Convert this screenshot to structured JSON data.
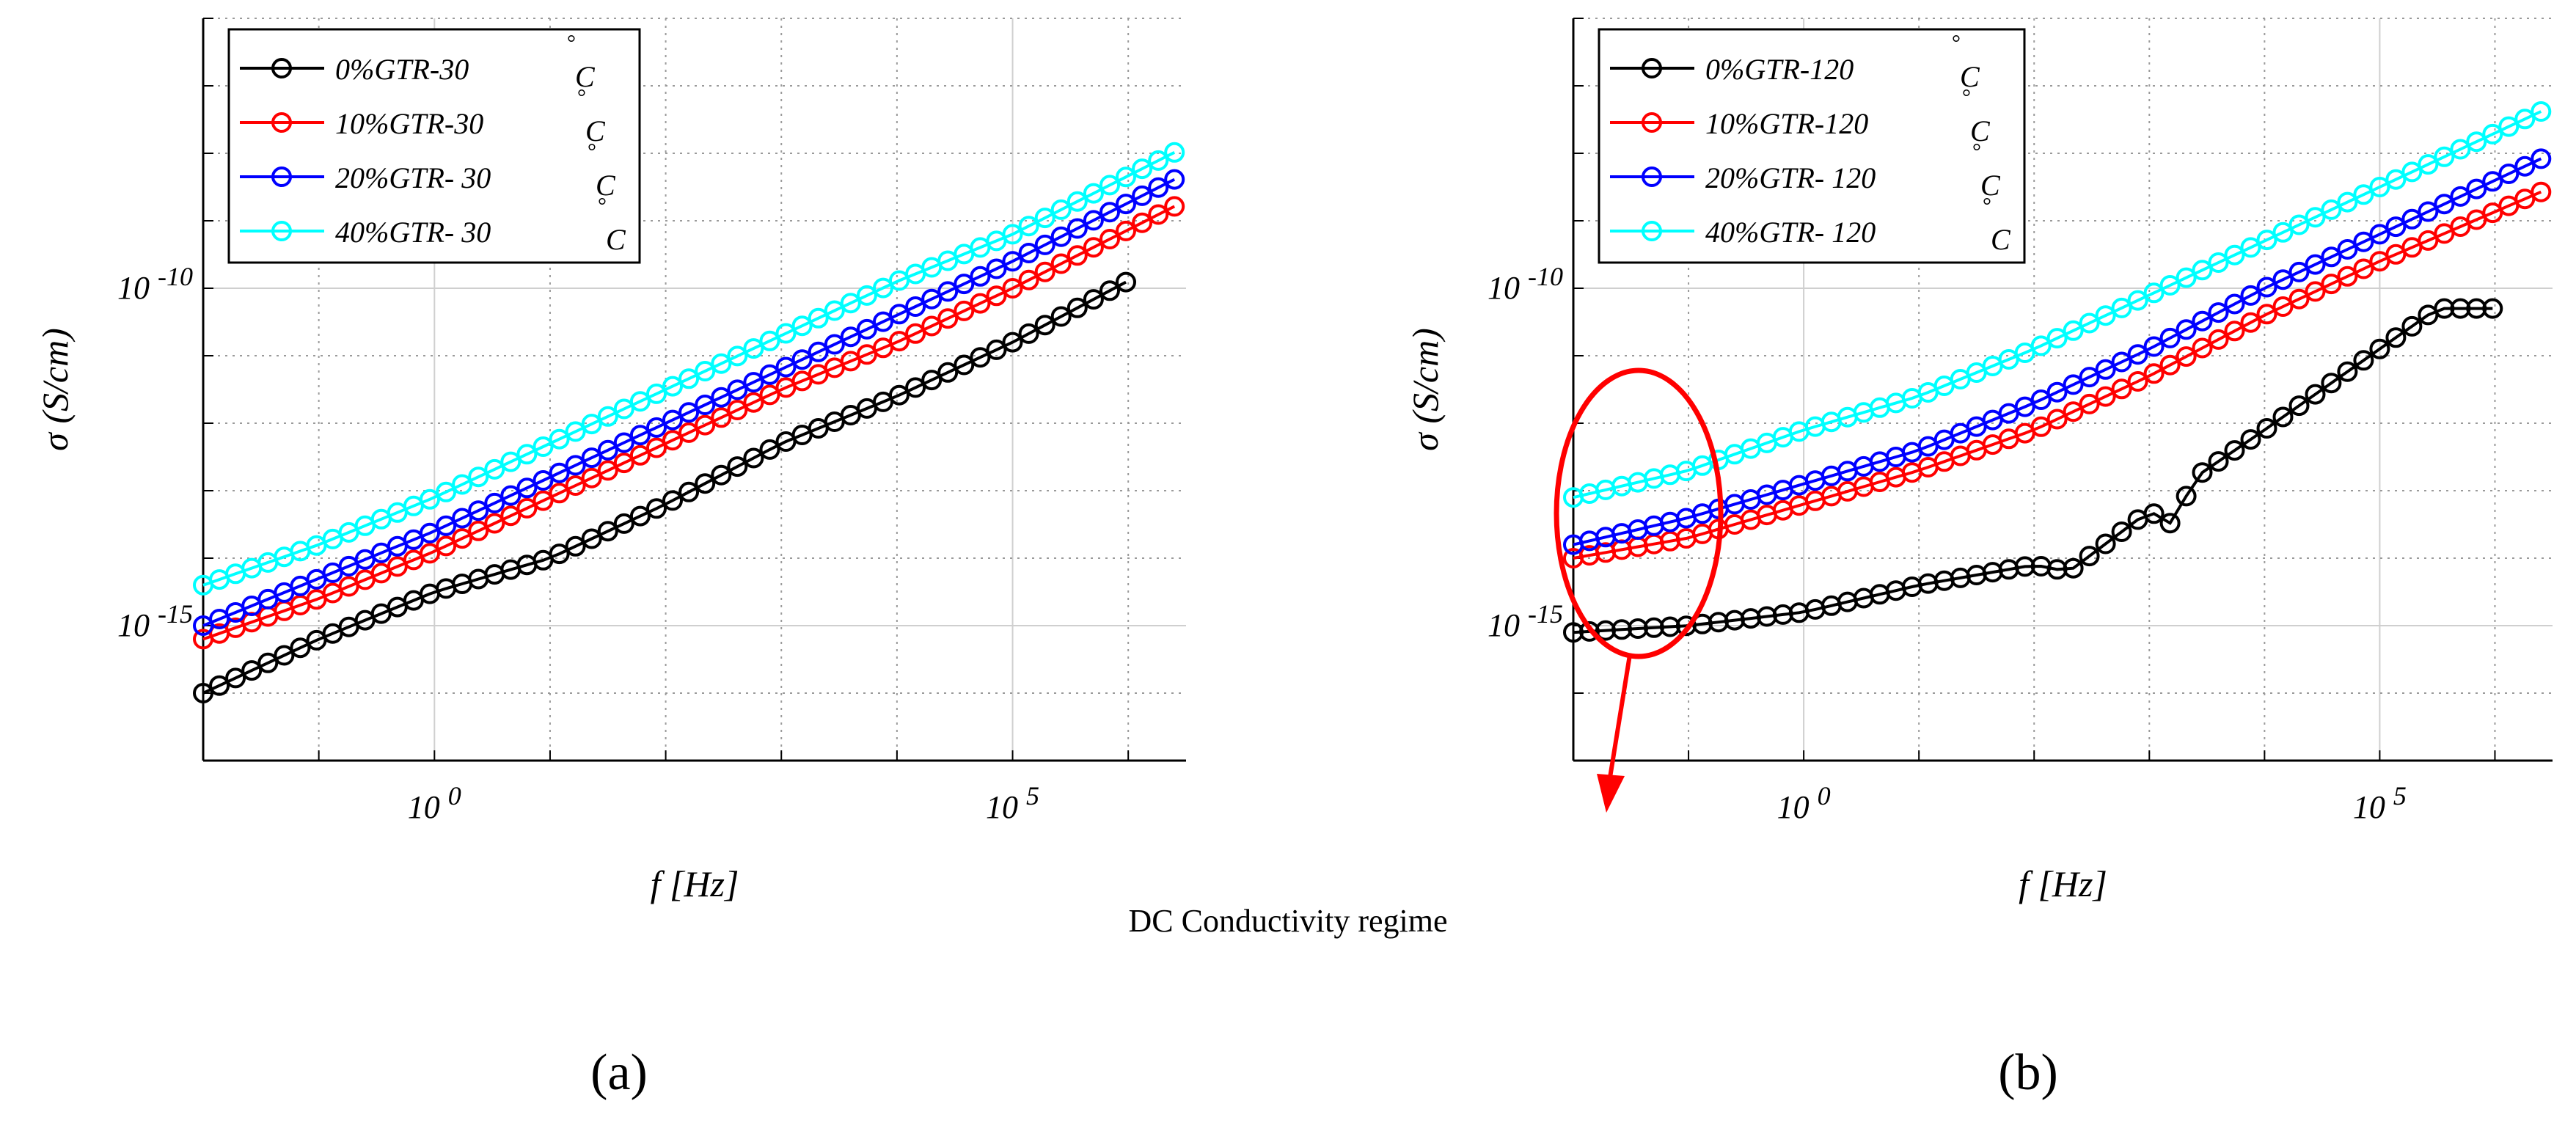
{
  "figure_caption": "DC Conductivity regime",
  "chart_data": [
    {
      "type": "line",
      "panel_label": "(a)",
      "xlabel": "f [Hz]",
      "ylabel": "σ (S/cm)",
      "xscale": "log",
      "yscale": "log",
      "x_ticks": [
        {
          "value": 0,
          "base": "10",
          "exp": "0"
        },
        {
          "value": 5,
          "base": "10",
          "exp": "5"
        }
      ],
      "y_ticks": [
        {
          "value": -10,
          "base": "10",
          "exp": "-10"
        },
        {
          "value": -15,
          "base": "10",
          "exp": "-15"
        }
      ],
      "xlim_log10": [
        -2,
        6.5
      ],
      "ylim_log10": [
        -17,
        -6
      ],
      "grid": true,
      "legend_position": "top-left",
      "series": [
        {
          "name": "0%GTR-30",
          "unit": "C",
          "degree": "°",
          "color": "#000000",
          "log10_x": [
            -2,
            -1,
            0,
            1,
            2,
            3,
            4,
            5,
            6.1
          ],
          "log10_y": [
            -16,
            -15.2,
            -14.5,
            -14.0,
            -13.2,
            -12.3,
            -11.6,
            -10.8,
            -9.8
          ]
        },
        {
          "name": "10%GTR-30",
          "unit": "C",
          "degree": "°",
          "color": "#ff0000",
          "log10_x": [
            -2,
            -1,
            0,
            1,
            2,
            3,
            4,
            5,
            6.5
          ],
          "log10_y": [
            -15.2,
            -14.6,
            -13.9,
            -13.1,
            -12.3,
            -11.5,
            -10.8,
            -10.0,
            -8.7
          ]
        },
        {
          "name": "20%GTR- 30",
          "unit": "C",
          "degree": "°",
          "color": "#0000ff",
          "log10_x": [
            -2,
            -1,
            0,
            1,
            2,
            3,
            4,
            5,
            6.5
          ],
          "log10_y": [
            -15.0,
            -14.3,
            -13.6,
            -12.8,
            -12.0,
            -11.2,
            -10.4,
            -9.6,
            -8.3
          ]
        },
        {
          "name": "40%GTR- 30",
          "unit": "C",
          "degree": "°",
          "color": "#00ffff",
          "log10_x": [
            -2,
            -1,
            0,
            1,
            2,
            3,
            4,
            5,
            6.5
          ],
          "log10_y": [
            -14.4,
            -13.8,
            -13.1,
            -12.3,
            -11.5,
            -10.7,
            -9.9,
            -9.2,
            -7.9
          ]
        }
      ]
    },
    {
      "type": "line",
      "panel_label": "(b)",
      "xlabel": "f [Hz]",
      "ylabel": "σ (S/cm)",
      "xscale": "log",
      "yscale": "log",
      "x_ticks": [
        {
          "value": 0,
          "base": "10",
          "exp": "0"
        },
        {
          "value": 5,
          "base": "10",
          "exp": "5"
        }
      ],
      "y_ticks": [
        {
          "value": -10,
          "base": "10",
          "exp": "-10"
        },
        {
          "value": -15,
          "base": "10",
          "exp": "-15"
        }
      ],
      "xlim_log10": [
        -2,
        6.5
      ],
      "ylim_log10": [
        -17,
        -6
      ],
      "grid": true,
      "legend_position": "top-left",
      "series": [
        {
          "name": "0%GTR-120",
          "unit": "C",
          "degree": "°",
          "color": "#000000",
          "log10_x": [
            -2,
            -1,
            0,
            1,
            2,
            2.3,
            3,
            3.2,
            3.4,
            4,
            5,
            5.5,
            6.0
          ],
          "log10_y": [
            -15.1,
            -15.0,
            -14.8,
            -14.4,
            -14.1,
            -14.2,
            -13.3,
            -13.5,
            -12.8,
            -12.1,
            -10.9,
            -10.3,
            -10.3
          ]
        },
        {
          "name": "10%GTR-120",
          "unit": "C",
          "degree": "°",
          "color": "#ff0000",
          "log10_x": [
            -2,
            -1,
            0,
            1,
            2,
            3,
            4,
            5,
            6.5
          ],
          "log10_y": [
            -14.0,
            -13.7,
            -13.2,
            -12.7,
            -12.1,
            -11.3,
            -10.4,
            -9.6,
            -8.5
          ]
        },
        {
          "name": "20%GTR- 120",
          "unit": "C",
          "degree": "°",
          "color": "#0000ff",
          "log10_x": [
            -2,
            -1,
            0,
            1,
            2,
            3,
            4,
            5,
            6.5
          ],
          "log10_y": [
            -13.8,
            -13.4,
            -12.9,
            -12.4,
            -11.7,
            -10.9,
            -10.0,
            -9.2,
            -8.0
          ]
        },
        {
          "name": "40%GTR- 120",
          "unit": "C",
          "degree": "°",
          "color": "#00ffff",
          "log10_x": [
            -2,
            -1,
            0,
            1,
            2,
            3,
            4,
            5,
            6.5
          ],
          "log10_y": [
            -13.1,
            -12.7,
            -12.1,
            -11.6,
            -10.9,
            -10.1,
            -9.3,
            -8.5,
            -7.3
          ]
        }
      ]
    }
  ]
}
